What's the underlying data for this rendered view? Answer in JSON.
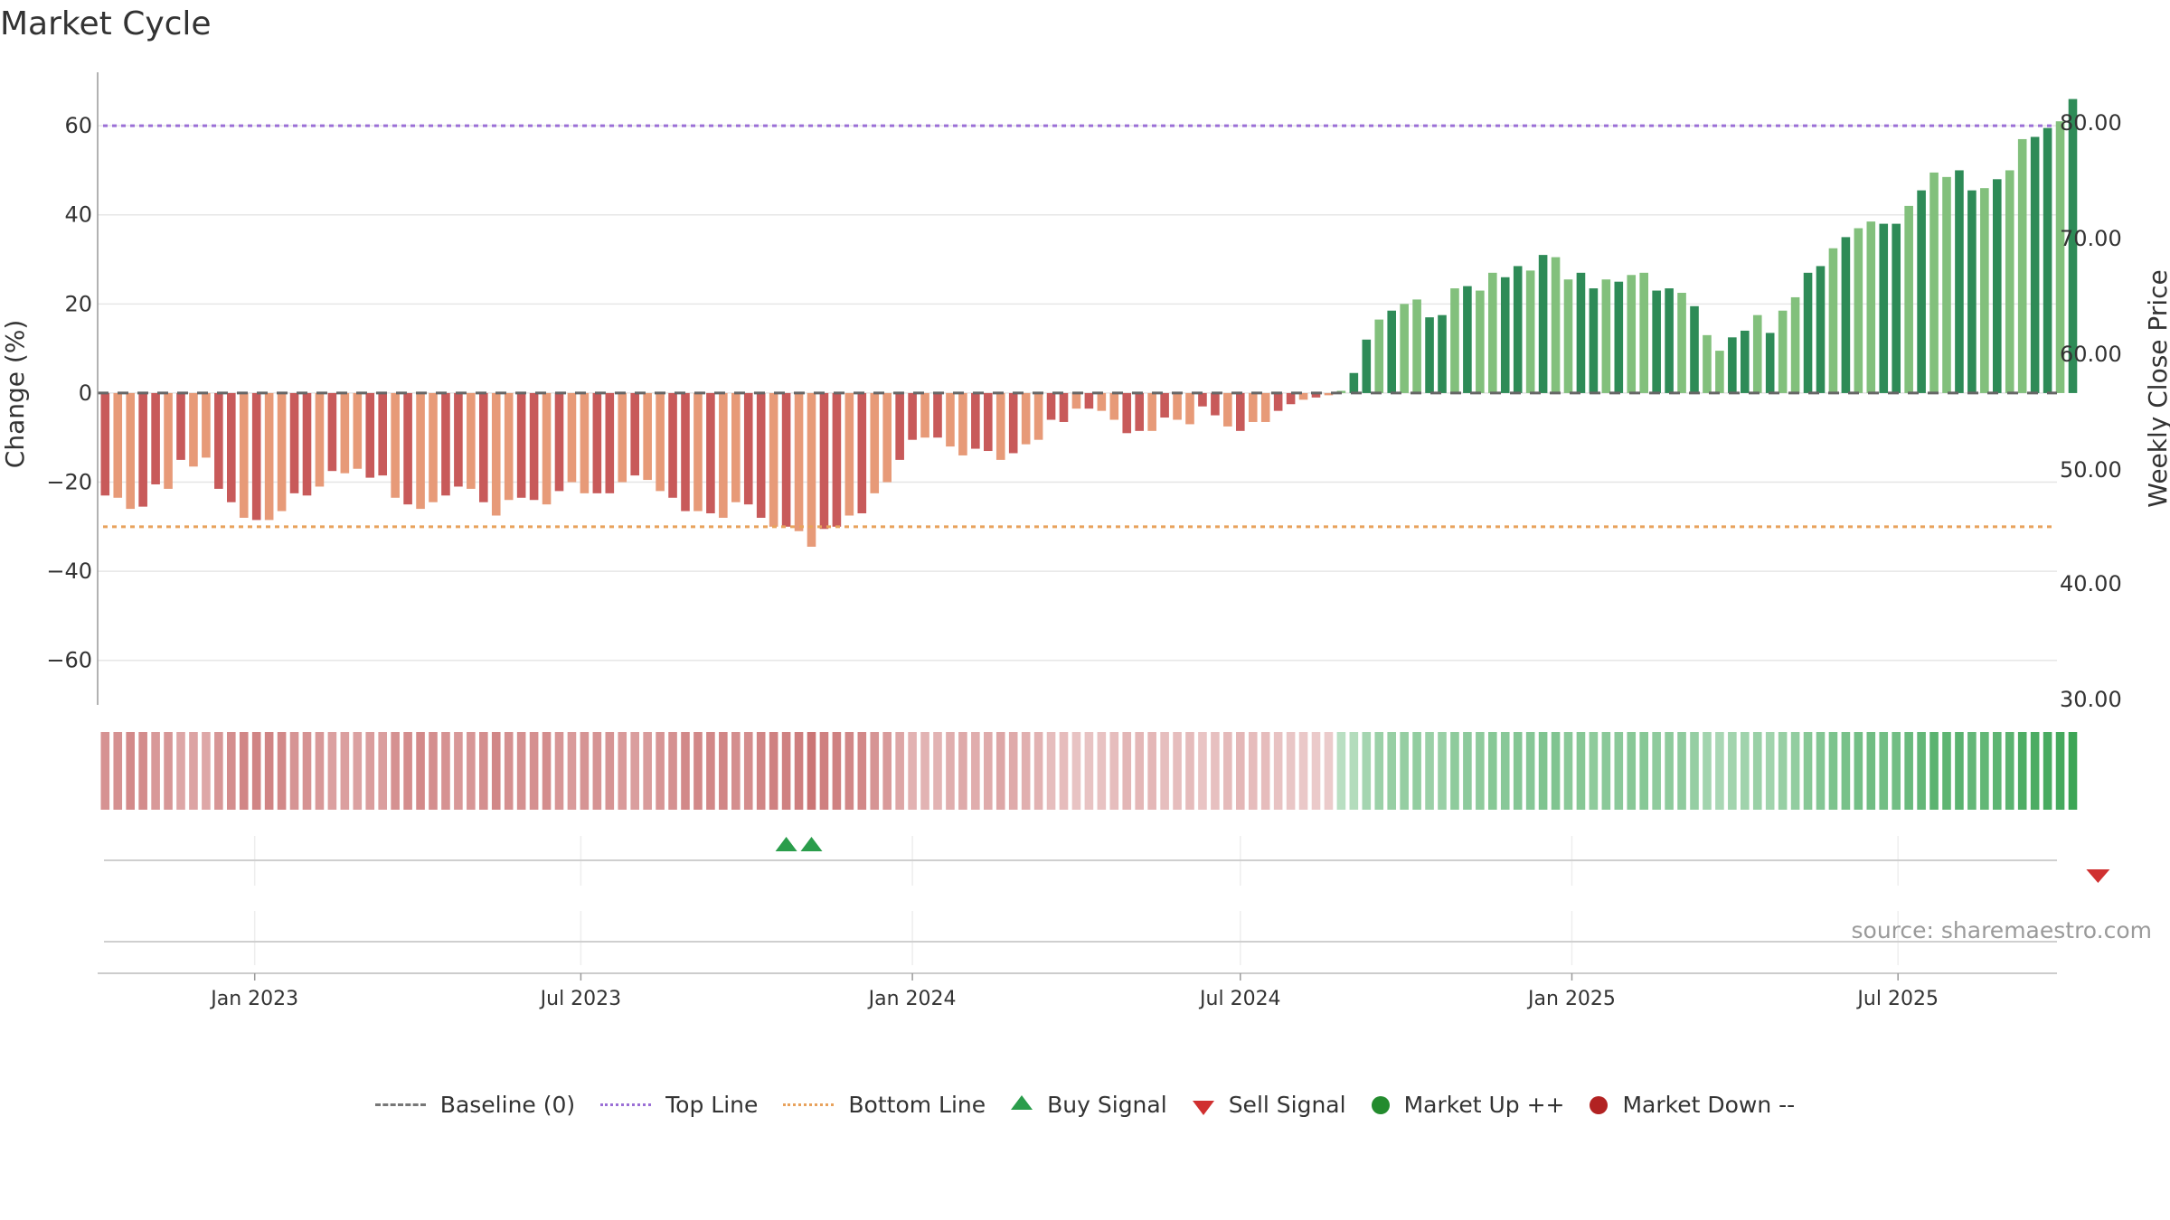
{
  "title": "Market Cycle",
  "source_text": "source: sharemaestro.com",
  "chart_data": {
    "type": "bar",
    "y_left_label": "Change (%)",
    "y_right_label": "Weekly Close Price",
    "y_left_range": [
      -70,
      72
    ],
    "y_left_ticks": [
      {
        "v": 60,
        "t": "60"
      },
      {
        "v": 40,
        "t": "40"
      },
      {
        "v": 20,
        "t": "20"
      },
      {
        "v": 0,
        "t": "0"
      },
      {
        "v": -20,
        "t": "−20"
      },
      {
        "v": -40,
        "t": "−40"
      },
      {
        "v": -60,
        "t": "−60"
      }
    ],
    "y_right_ticks": [
      "80.00",
      "70.00",
      "60.00",
      "50.00",
      "40.00",
      "30.00"
    ],
    "x_start": "2022-10-10",
    "x_ticks": [
      "Jan 2023",
      "Jul 2023",
      "Jan 2024",
      "Jul 2024",
      "Jan 2025",
      "Jul 2025"
    ],
    "reference_lines": {
      "top": 60,
      "bottom": -30,
      "baseline": 0
    },
    "values": [
      -23,
      -23.5,
      -26,
      -25.5,
      -20.5,
      -21.5,
      -15,
      -16.5,
      -14.5,
      -21.5,
      -24.5,
      -28,
      -28.5,
      -28.5,
      -26.5,
      -22.5,
      -23,
      -21,
      -17.5,
      -18,
      -17,
      -19,
      -18.5,
      -23.5,
      -25,
      -26,
      -24.5,
      -23,
      -21,
      -21.5,
      -24.5,
      -27.5,
      -24,
      -23.5,
      -24,
      -25,
      -22,
      -20,
      -22.5,
      -22.5,
      -22.5,
      -20,
      -18.5,
      -19.5,
      -22,
      -23.5,
      -26.5,
      -26.5,
      -27,
      -28,
      -24.5,
      -25,
      -28,
      -30,
      -30,
      -31,
      -34.5,
      -30.5,
      -30,
      -27.5,
      -27,
      -22.5,
      -20,
      -15,
      -10.5,
      -10,
      -10,
      -12,
      -14,
      -12.5,
      -13,
      -15,
      -13.5,
      -11.5,
      -10.5,
      -6,
      -6.5,
      -3.5,
      -3.5,
      -4,
      -6,
      -9,
      -8.5,
      -8.5,
      -5.5,
      -6,
      -7,
      -3,
      -5,
      -7.5,
      -8.5,
      -6.5,
      -6.5,
      -4,
      -2.5,
      -1.5,
      -1,
      -0.5,
      0.5,
      4.5,
      12,
      16.5,
      18.5,
      20,
      21,
      17,
      17.5,
      23.5,
      24,
      23,
      27,
      26,
      28.5,
      27.5,
      31,
      30.5,
      25.5,
      27,
      23.5,
      25.5,
      25,
      26.5,
      27,
      23,
      23.5,
      22.5,
      19.5,
      13,
      9.5,
      12.5,
      14,
      17.5,
      13.5,
      18.5,
      21.5,
      27,
      28.5,
      32.5,
      35,
      37,
      38.5,
      38,
      38,
      42,
      45.5,
      49.5,
      48.5,
      50,
      45.5,
      46,
      48,
      50,
      57,
      57.5,
      59.5,
      61,
      66
    ],
    "series": [
      {
        "name": "Baseline (0)"
      },
      {
        "name": "Top Line"
      },
      {
        "name": "Bottom Line"
      },
      {
        "name": "Buy Signal"
      },
      {
        "name": "Sell Signal"
      },
      {
        "name": "Market Up ++"
      },
      {
        "name": "Market Down --"
      }
    ],
    "buy_signals": [
      54,
      56
    ],
    "sell_signals": [
      158
    ],
    "colors": {
      "down_dark": "#c85a5a",
      "down_light": "#e79a78",
      "up_dark": "#2e8b57",
      "up_light": "#82c07c",
      "top_line": "#9b6fd6",
      "bottom_line": "#e8a25c",
      "baseline": "#666666",
      "buy": "#2a9d4b",
      "sell": "#d03030",
      "market_up": "#238b2e",
      "market_down": "#b22222"
    }
  }
}
